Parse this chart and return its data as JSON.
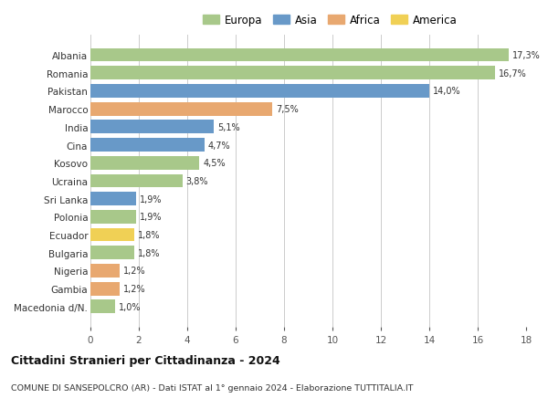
{
  "categories": [
    "Albania",
    "Romania",
    "Pakistan",
    "Marocco",
    "India",
    "Cina",
    "Kosovo",
    "Ucraina",
    "Sri Lanka",
    "Polonia",
    "Ecuador",
    "Bulgaria",
    "Nigeria",
    "Gambia",
    "Macedonia d/N."
  ],
  "values": [
    17.3,
    16.7,
    14.0,
    7.5,
    5.1,
    4.7,
    4.5,
    3.8,
    1.9,
    1.9,
    1.8,
    1.8,
    1.2,
    1.2,
    1.0
  ],
  "labels": [
    "17,3%",
    "16,7%",
    "14,0%",
    "7,5%",
    "5,1%",
    "4,7%",
    "4,5%",
    "3,8%",
    "1,9%",
    "1,9%",
    "1,8%",
    "1,8%",
    "1,2%",
    "1,2%",
    "1,0%"
  ],
  "continents": [
    "Europa",
    "Europa",
    "Asia",
    "Africa",
    "Asia",
    "Asia",
    "Europa",
    "Europa",
    "Asia",
    "Europa",
    "America",
    "Europa",
    "Africa",
    "Africa",
    "Europa"
  ],
  "colors": {
    "Europa": "#a8c88a",
    "Asia": "#6899c8",
    "Africa": "#e8a870",
    "America": "#f0d055"
  },
  "legend_order": [
    "Europa",
    "Asia",
    "Africa",
    "America"
  ],
  "title": "Cittadini Stranieri per Cittadinanza - 2024",
  "subtitle": "COMUNE DI SANSEPOLCRO (AR) - Dati ISTAT al 1° gennaio 2024 - Elaborazione TUTTITALIA.IT",
  "xlim": [
    0,
    18
  ],
  "xticks": [
    0,
    2,
    4,
    6,
    8,
    10,
    12,
    14,
    16,
    18
  ],
  "background_color": "#ffffff",
  "grid_color": "#cccccc",
  "bar_height": 0.75
}
